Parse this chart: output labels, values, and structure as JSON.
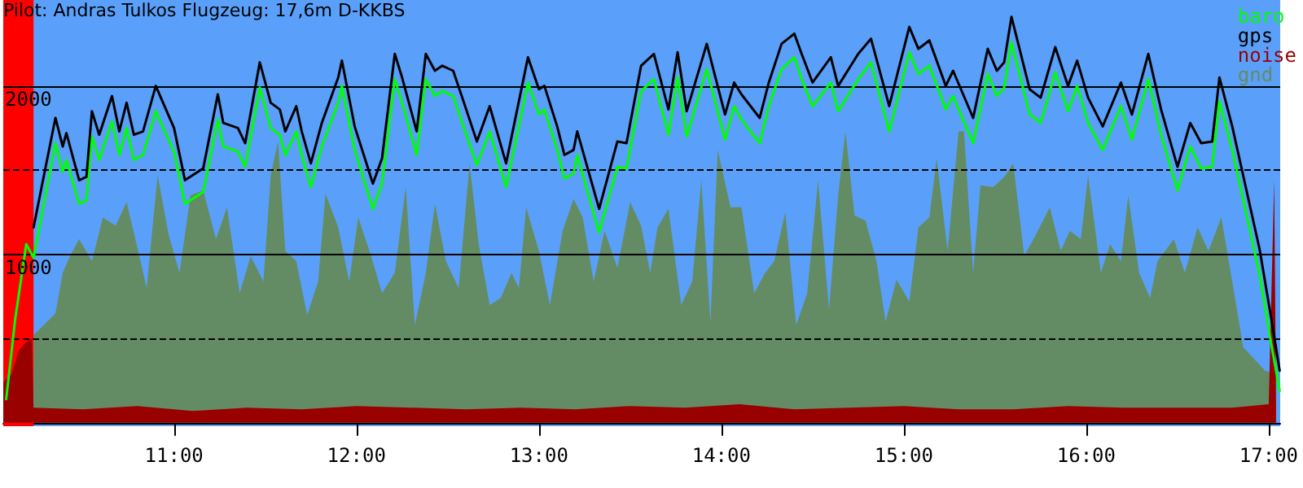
{
  "chart_data": {
    "type": "line",
    "title": "Pilot: Andras Tulkos Flugzeug: 17,6m D-KKBS",
    "xlim": [
      10.064,
      17.063
    ],
    "ylim": [
      -20,
      2510
    ],
    "xticks": [
      {
        "value": 11,
        "label": "11:00"
      },
      {
        "value": 12,
        "label": "12:00"
      },
      {
        "value": 13,
        "label": "13:00"
      },
      {
        "value": 14,
        "label": "14:00"
      },
      {
        "value": 15,
        "label": "15:00"
      },
      {
        "value": 16,
        "label": "16:00"
      },
      {
        "value": 17,
        "label": "17:00"
      }
    ],
    "yticks": [
      1000,
      2000
    ],
    "grid": "y",
    "legend": "top right",
    "marker": "none",
    "line_style": "solid",
    "ref_lines": [
      {
        "axis": "y",
        "value": 500,
        "color": "#000000",
        "line_style": "dashed"
      },
      {
        "axis": "y",
        "value": 1500,
        "color": "#000000",
        "line_style": "dashed"
      }
    ],
    "bands": [
      {
        "axis": "x",
        "from": 10.064,
        "to": 10.23,
        "color": "#ff0000"
      }
    ],
    "series": [
      {
        "name": "gnd",
        "type": "area",
        "color": "#648c64",
        "x": [
          10.23,
          10.35,
          10.39,
          10.43,
          10.48,
          10.55,
          10.61,
          10.68,
          10.74,
          10.81,
          10.85,
          10.91,
          10.97,
          11.03,
          11.09,
          11.16,
          11.23,
          11.29,
          11.36,
          11.42,
          11.49,
          11.53,
          11.57,
          11.61,
          11.67,
          11.73,
          11.79,
          11.83,
          11.9,
          11.96,
          12.01,
          12.08,
          12.14,
          12.21,
          12.27,
          12.32,
          12.38,
          12.43,
          12.49,
          12.56,
          12.62,
          12.67,
          12.73,
          12.79,
          12.85,
          12.89,
          12.93,
          13.0,
          13.06,
          13.13,
          13.19,
          13.24,
          13.3,
          13.36,
          13.43,
          13.5,
          13.56,
          13.61,
          13.65,
          13.71,
          13.78,
          13.84,
          13.89,
          13.94,
          13.98,
          14.05,
          14.11,
          14.18,
          14.24,
          14.29,
          14.35,
          14.41,
          14.47,
          14.53,
          14.59,
          14.64,
          14.68,
          14.73,
          14.79,
          14.85,
          14.9,
          14.96,
          15.03,
          15.08,
          15.14,
          15.18,
          15.24,
          15.3,
          15.33,
          15.38,
          15.42,
          15.49,
          15.55,
          15.6,
          15.66,
          15.73,
          15.8,
          15.86,
          15.91,
          15.97,
          16.01,
          16.08,
          16.13,
          16.19,
          16.23,
          16.29,
          16.35,
          16.39,
          16.48,
          16.54,
          16.61,
          16.67,
          16.74,
          16.8,
          16.86,
          16.92,
          16.98,
          17.04
        ],
        "values": [
          520,
          650,
          890,
          990,
          1090,
          960,
          1220,
          1170,
          1310,
          990,
          800,
          1470,
          1120,
          890,
          1350,
          1380,
          1090,
          1280,
          770,
          990,
          840,
          1470,
          1670,
          1020,
          960,
          640,
          840,
          1360,
          1160,
          840,
          1220,
          990,
          770,
          890,
          1400,
          580,
          890,
          1300,
          960,
          800,
          1540,
          1060,
          700,
          740,
          890,
          800,
          1280,
          1020,
          700,
          1140,
          1330,
          1220,
          840,
          1140,
          920,
          1310,
          1170,
          890,
          1160,
          1270,
          700,
          840,
          1440,
          600,
          1620,
          1280,
          1280,
          770,
          890,
          960,
          1250,
          580,
          770,
          1440,
          670,
          1350,
          1730,
          1230,
          1200,
          960,
          600,
          850,
          720,
          1160,
          1220,
          1570,
          1020,
          1730,
          1730,
          890,
          1410,
          1400,
          1460,
          1540,
          990,
          1130,
          1280,
          1020,
          1140,
          1090,
          1470,
          890,
          1060,
          960,
          1350,
          890,
          740,
          960,
          1090,
          890,
          1160,
          1020,
          1220,
          840,
          450,
          380,
          310,
          290
        ]
      },
      {
        "name": "noise",
        "type": "area",
        "color": "#990000",
        "x": [
          10.064,
          10.11,
          10.15,
          10.19,
          10.22,
          10.23,
          10.5,
          10.8,
          11.1,
          11.4,
          11.7,
          12.0,
          12.3,
          12.6,
          12.9,
          13.2,
          13.5,
          13.8,
          14.1,
          14.4,
          14.7,
          15.0,
          15.3,
          15.6,
          15.9,
          16.2,
          16.5,
          16.8,
          17.0,
          17.03,
          17.04
        ],
        "values": [
          240,
          290,
          430,
          480,
          500,
          90,
          80,
          100,
          70,
          90,
          80,
          100,
          90,
          80,
          90,
          80,
          100,
          90,
          110,
          80,
          90,
          100,
          80,
          80,
          100,
          90,
          90,
          90,
          110,
          1440,
          100
        ]
      },
      {
        "name": "baro",
        "color": "#00ff00",
        "x": [
          10.08,
          10.13,
          10.19,
          10.23,
          10.35,
          10.39,
          10.41,
          10.48,
          10.52,
          10.55,
          10.59,
          10.66,
          10.7,
          10.74,
          10.78,
          10.83,
          10.9,
          10.94,
          11.0,
          11.06,
          11.16,
          11.24,
          11.27,
          11.35,
          11.39,
          11.47,
          11.53,
          11.58,
          11.61,
          11.67,
          11.7,
          11.75,
          11.81,
          11.9,
          11.92,
          11.99,
          12.09,
          12.14,
          12.21,
          12.25,
          12.33,
          12.38,
          12.43,
          12.47,
          12.53,
          12.58,
          12.66,
          12.73,
          12.82,
          12.94,
          13.0,
          13.03,
          13.1,
          13.14,
          13.19,
          13.21,
          13.33,
          13.43,
          13.48,
          13.56,
          13.63,
          13.71,
          13.76,
          13.81,
          13.92,
          14.02,
          14.07,
          14.11,
          14.21,
          14.26,
          14.33,
          14.4,
          14.44,
          14.5,
          14.6,
          14.64,
          14.75,
          14.82,
          14.92,
          15.03,
          15.08,
          15.14,
          15.23,
          15.27,
          15.38,
          15.46,
          15.51,
          15.55,
          15.59,
          15.69,
          15.75,
          15.83,
          15.9,
          15.95,
          16.01,
          16.09,
          16.19,
          16.25,
          16.34,
          16.41,
          16.5,
          16.57,
          16.63,
          16.69,
          16.73,
          16.8,
          16.95,
          17.02,
          17.06
        ],
        "values": [
          140,
          620,
          1060,
          980,
          1660,
          1490,
          1560,
          1300,
          1320,
          1700,
          1560,
          1790,
          1590,
          1750,
          1560,
          1590,
          1850,
          1750,
          1610,
          1300,
          1370,
          1800,
          1640,
          1610,
          1520,
          1990,
          1750,
          1710,
          1590,
          1730,
          1590,
          1400,
          1640,
          1900,
          2000,
          1620,
          1270,
          1420,
          2040,
          1900,
          1590,
          2040,
          1940,
          1970,
          1940,
          1780,
          1530,
          1730,
          1400,
          2020,
          1830,
          1860,
          1620,
          1450,
          1480,
          1590,
          1130,
          1520,
          1510,
          1970,
          2040,
          1710,
          2050,
          1700,
          2100,
          1680,
          1880,
          1800,
          1660,
          1880,
          2100,
          2170,
          2040,
          1880,
          2020,
          1850,
          2040,
          2140,
          1730,
          2200,
          2070,
          2120,
          1860,
          1940,
          1660,
          2070,
          1940,
          1990,
          2260,
          1830,
          1780,
          2080,
          1850,
          2000,
          1780,
          1620,
          1880,
          1680,
          2040,
          1710,
          1380,
          1640,
          1510,
          1520,
          1910,
          1620,
          880,
          430,
          190
        ]
      },
      {
        "name": "gps",
        "color": "#000000",
        "x": [
          10.23,
          10.35,
          10.39,
          10.41,
          10.48,
          10.52,
          10.55,
          10.59,
          10.66,
          10.7,
          10.74,
          10.78,
          10.83,
          10.9,
          10.94,
          11.0,
          11.06,
          11.16,
          11.24,
          11.27,
          11.35,
          11.39,
          11.47,
          11.53,
          11.58,
          11.61,
          11.67,
          11.7,
          11.75,
          11.81,
          11.9,
          11.92,
          11.99,
          12.09,
          12.14,
          12.21,
          12.25,
          12.33,
          12.38,
          12.43,
          12.47,
          12.53,
          12.58,
          12.66,
          12.73,
          12.82,
          12.94,
          13.0,
          13.03,
          13.1,
          13.14,
          13.19,
          13.21,
          13.33,
          13.43,
          13.48,
          13.56,
          13.63,
          13.71,
          13.76,
          13.81,
          13.92,
          14.02,
          14.07,
          14.11,
          14.21,
          14.26,
          14.33,
          14.4,
          14.44,
          14.5,
          14.6,
          14.64,
          14.75,
          14.82,
          14.92,
          15.03,
          15.08,
          15.14,
          15.23,
          15.27,
          15.38,
          15.46,
          15.51,
          15.55,
          15.59,
          15.69,
          15.75,
          15.83,
          15.9,
          15.95,
          16.01,
          16.09,
          16.19,
          16.25,
          16.34,
          16.41,
          16.5,
          16.57,
          16.63,
          16.69,
          16.73,
          16.8,
          16.95,
          17.02,
          17.06
        ],
        "values": [
          1160,
          1810,
          1640,
          1720,
          1440,
          1460,
          1850,
          1710,
          1940,
          1730,
          1900,
          1710,
          1730,
          2000,
          1900,
          1750,
          1440,
          1510,
          1950,
          1780,
          1750,
          1660,
          2140,
          1900,
          1860,
          1730,
          1880,
          1730,
          1540,
          1780,
          2050,
          2150,
          1760,
          1420,
          1570,
          2190,
          2050,
          1730,
          2190,
          2090,
          2120,
          2090,
          1930,
          1670,
          1880,
          1540,
          2170,
          1980,
          2000,
          1760,
          1590,
          1620,
          1730,
          1270,
          1670,
          1660,
          2120,
          2190,
          1860,
          2200,
          1850,
          2250,
          1830,
          2020,
          1950,
          1810,
          2020,
          2250,
          2310,
          2190,
          2020,
          2170,
          2000,
          2190,
          2280,
          1880,
          2350,
          2220,
          2270,
          2000,
          2090,
          1810,
          2220,
          2090,
          2140,
          2410,
          1980,
          1930,
          2230,
          2000,
          2150,
          1930,
          1760,
          2020,
          1830,
          2190,
          1860,
          1520,
          1780,
          1660,
          1670,
          2050,
          1760,
          1030,
          580,
          310
        ]
      }
    ]
  }
}
